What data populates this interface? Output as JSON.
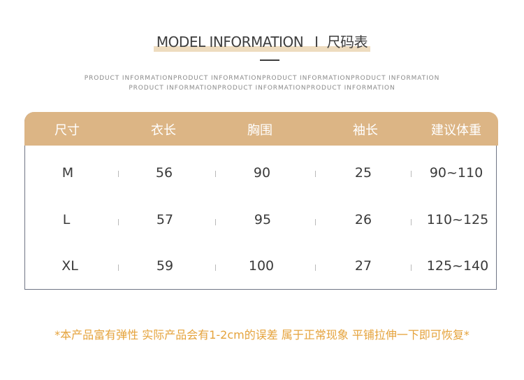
{
  "header": {
    "title_en": "MODEL INFORMATION",
    "title_sep": "I",
    "title_cn": "尺码表",
    "subtitle_line1": "PRODUCT INFORMATIONPRODUCT INFORMATIONPRODUCT INFORMATIONPRODUCT INFORMATION",
    "subtitle_line2": "PRODUCT INFORMATIONPRODUCT INFORMATIONPRODUCT INFORMATION"
  },
  "table": {
    "columns": [
      "尺寸",
      "衣长",
      "胸围",
      "袖长",
      "建议体重"
    ],
    "rows": [
      [
        "M",
        "56",
        "90",
        "25",
        "90~110"
      ],
      [
        "L",
        "57",
        "95",
        "26",
        "110~125"
      ],
      [
        "XL",
        "59",
        "100",
        "27",
        "125~140"
      ]
    ]
  },
  "note": "*本产品富有弹性 实际产品会有1-2cm的误差 属于正常现象 平铺拉伸一下即可恢复*",
  "colors": {
    "header_bg": "#dcb585",
    "title_highlight": "#eedcbf",
    "note_text": "#e5a33c",
    "table_border": "#6f7585"
  }
}
